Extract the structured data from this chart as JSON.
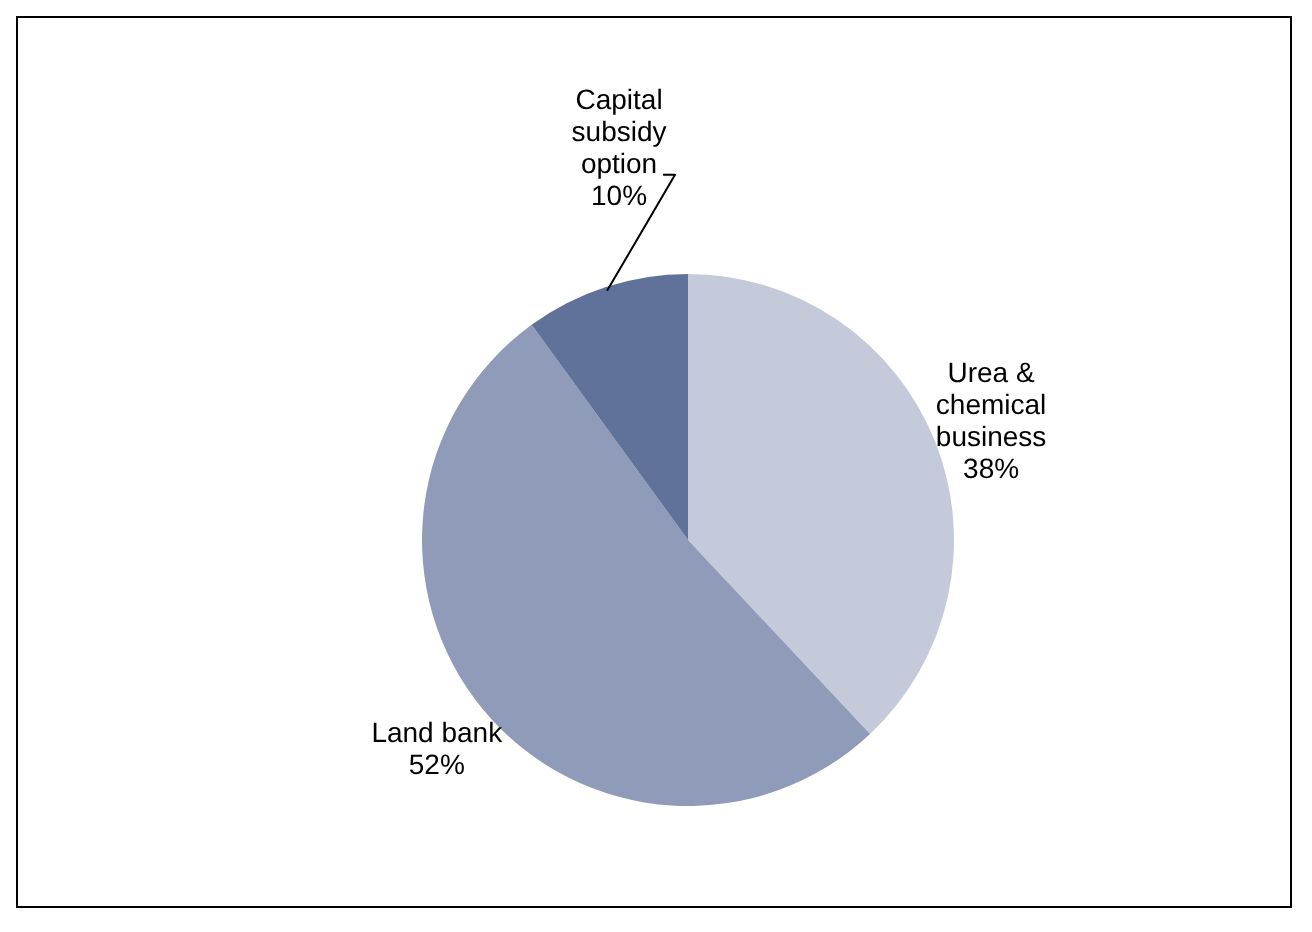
{
  "chart_data": {
    "type": "pie",
    "categories": [
      "Urea & chemical business",
      "Land bank",
      "Capital subsidy option"
    ],
    "values": [
      38,
      52,
      10
    ],
    "colors": [
      "#c5cadb",
      "#8f9bb8",
      "#60729a"
    ],
    "value_labels": [
      "38%",
      "52%",
      "10%"
    ],
    "legend": false
  }
}
